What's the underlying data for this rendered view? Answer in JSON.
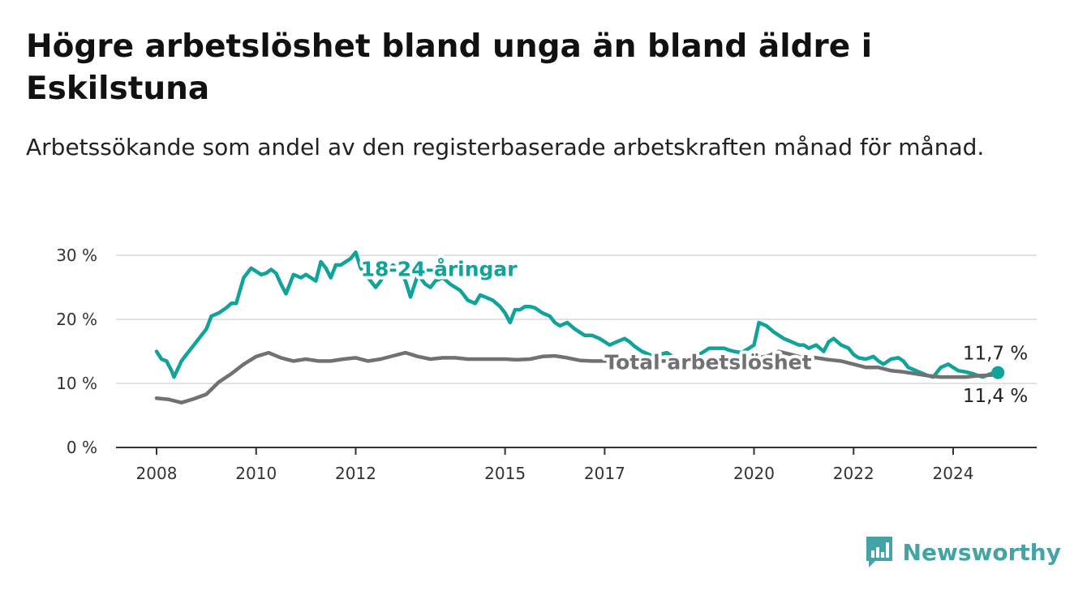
{
  "title": "Högre arbetslöshet bland unga än bland äldre i Eskilstuna",
  "subtitle": "Arbetssökande som andel av den registerbaserade arbetskraften månad för månad.",
  "brand": {
    "name": "Newsworthy",
    "color": "#43a3a5",
    "icon": "bar-chart-icon"
  },
  "colors": {
    "youth": "#10a39a",
    "total": "#737075",
    "grid": "#d9d9d9",
    "axis": "#333333"
  },
  "chart_data": {
    "type": "line",
    "x_unit": "year",
    "xlim": [
      2007.6,
      2025.8
    ],
    "ylim": [
      0,
      30
    ],
    "yticks": [
      0,
      10,
      20,
      30
    ],
    "ytick_labels": [
      "0 %",
      "10 %",
      "20 %",
      "30 %"
    ],
    "xticks": [
      2008,
      2010,
      2012,
      2015,
      2017,
      2020,
      2022,
      2024
    ],
    "xtick_labels": [
      "2008",
      "2010",
      "2012",
      "2015",
      "2017",
      "2020",
      "2022",
      "2024"
    ],
    "grid": true,
    "series": [
      {
        "key": "youth",
        "name": "18-24-åringar",
        "color": "#10a39a",
        "x": [
          2008.0,
          2008.1,
          2008.2,
          2008.3,
          2008.35,
          2008.5,
          2008.6,
          2008.75,
          2008.9,
          2009.0,
          2009.1,
          2009.25,
          2009.4,
          2009.5,
          2009.6,
          2009.75,
          2009.9,
          2010.0,
          2010.1,
          2010.2,
          2010.3,
          2010.4,
          2010.5,
          2010.6,
          2010.75,
          2010.9,
          2011.0,
          2011.1,
          2011.2,
          2011.3,
          2011.4,
          2011.5,
          2011.6,
          2011.7,
          2011.8,
          2011.9,
          2012.0,
          2012.1,
          2012.25,
          2012.4,
          2012.5,
          2012.6,
          2012.75,
          2012.9,
          2013.0,
          2013.1,
          2013.25,
          2013.4,
          2013.5,
          2013.6,
          2013.75,
          2013.9,
          2014.0,
          2014.1,
          2014.25,
          2014.4,
          2014.5,
          2014.6,
          2014.75,
          2014.9,
          2015.0,
          2015.1,
          2015.2,
          2015.3,
          2015.4,
          2015.5,
          2015.6,
          2015.75,
          2015.9,
          2016.0,
          2016.1,
          2016.25,
          2016.4,
          2016.5,
          2016.6,
          2016.75,
          2016.9,
          2017.0,
          2017.1,
          2017.25,
          2017.4,
          2017.5,
          2017.6,
          2017.75,
          2017.9,
          2018.0,
          2018.1,
          2018.25,
          2018.4,
          2018.5,
          2018.6,
          2018.75,
          2018.9,
          2019.0,
          2019.1,
          2019.25,
          2019.4,
          2019.5,
          2019.6,
          2019.75,
          2019.9,
          2020.0,
          2020.1,
          2020.25,
          2020.4,
          2020.5,
          2020.6,
          2020.75,
          2020.9,
          2021.0,
          2021.1,
          2021.25,
          2021.4,
          2021.5,
          2021.6,
          2021.75,
          2021.9,
          2022.0,
          2022.1,
          2022.25,
          2022.4,
          2022.5,
          2022.6,
          2022.75,
          2022.9,
          2023.0,
          2023.1,
          2023.25,
          2023.4,
          2023.5,
          2023.6,
          2023.75,
          2023.9,
          2024.0,
          2024.1,
          2024.25,
          2024.4,
          2024.5,
          2024.6,
          2024.75,
          2024.9
        ],
        "y": [
          15.0,
          13.8,
          13.5,
          12.0,
          11.0,
          13.5,
          14.5,
          16.0,
          17.5,
          18.5,
          20.5,
          21.0,
          21.8,
          22.5,
          22.5,
          26.5,
          28.0,
          27.5,
          27.0,
          27.2,
          27.8,
          27.2,
          25.5,
          24.0,
          27.0,
          26.5,
          27.0,
          26.5,
          26.0,
          29.0,
          28.0,
          26.5,
          28.5,
          28.5,
          29.0,
          29.5,
          30.5,
          28.0,
          26.5,
          25.0,
          26.0,
          27.5,
          28.5,
          27.5,
          26.0,
          23.5,
          27.0,
          25.5,
          25.0,
          26.0,
          26.5,
          25.5,
          25.0,
          24.5,
          23.0,
          22.5,
          23.8,
          23.5,
          23.0,
          22.0,
          21.0,
          19.5,
          21.5,
          21.5,
          22.0,
          22.0,
          21.8,
          21.0,
          20.5,
          19.5,
          19.0,
          19.5,
          18.5,
          18.0,
          17.5,
          17.5,
          17.0,
          16.5,
          16.0,
          16.5,
          17.0,
          16.5,
          15.8,
          15.0,
          14.5,
          14.0,
          14.5,
          14.8,
          14.0,
          13.5,
          13.5,
          14.0,
          14.5,
          15.0,
          15.5,
          15.5,
          15.5,
          15.2,
          15.0,
          14.8,
          15.5,
          16.0,
          19.5,
          19.0,
          18.0,
          17.5,
          17.0,
          16.5,
          16.0,
          16.0,
          15.5,
          16.0,
          15.0,
          16.5,
          17.0,
          16.0,
          15.5,
          14.5,
          14.0,
          13.8,
          14.2,
          13.5,
          13.0,
          13.8,
          14.0,
          13.5,
          12.5,
          12.0,
          11.5,
          11.2,
          11.0,
          12.5,
          13.0,
          12.5,
          12.0,
          11.8,
          11.5,
          11.2,
          11.0,
          11.5,
          11.7
        ]
      },
      {
        "key": "total",
        "name": "Total arbetslöshet",
        "color": "#737075",
        "x": [
          2008.0,
          2008.25,
          2008.5,
          2008.75,
          2009.0,
          2009.25,
          2009.5,
          2009.75,
          2010.0,
          2010.25,
          2010.5,
          2010.75,
          2011.0,
          2011.25,
          2011.5,
          2011.75,
          2012.0,
          2012.25,
          2012.5,
          2012.75,
          2013.0,
          2013.25,
          2013.5,
          2013.75,
          2014.0,
          2014.25,
          2014.5,
          2014.75,
          2015.0,
          2015.25,
          2015.5,
          2015.75,
          2016.0,
          2016.25,
          2016.5,
          2016.75,
          2017.0,
          2017.25,
          2017.5,
          2017.75,
          2018.0,
          2018.25,
          2018.5,
          2018.75,
          2019.0,
          2019.25,
          2019.5,
          2019.75,
          2020.0,
          2020.25,
          2020.5,
          2020.75,
          2021.0,
          2021.25,
          2021.5,
          2021.75,
          2022.0,
          2022.25,
          2022.5,
          2022.75,
          2023.0,
          2023.25,
          2023.5,
          2023.75,
          2024.0,
          2024.25,
          2024.5,
          2024.75,
          2024.9
        ],
        "y": [
          7.7,
          7.5,
          7.0,
          7.6,
          8.3,
          10.2,
          11.5,
          13.0,
          14.2,
          14.8,
          14.0,
          13.5,
          13.8,
          13.5,
          13.5,
          13.8,
          14.0,
          13.5,
          13.8,
          14.3,
          14.8,
          14.2,
          13.8,
          14.0,
          14.0,
          13.8,
          13.8,
          13.8,
          13.8,
          13.7,
          13.8,
          14.2,
          14.3,
          14.0,
          13.6,
          13.5,
          13.5,
          13.4,
          13.5,
          13.5,
          13.5,
          13.5,
          13.5,
          13.5,
          13.5,
          13.8,
          14.0,
          14.0,
          14.0,
          14.2,
          15.0,
          14.5,
          14.0,
          14.0,
          13.7,
          13.5,
          13.0,
          12.5,
          12.5,
          12.0,
          11.8,
          11.5,
          11.2,
          11.0,
          11.0,
          11.0,
          11.2,
          11.3,
          11.4
        ]
      }
    ],
    "series_label_positions": {
      "youth": {
        "x": 2012.1,
        "y": 26.8
      },
      "total": {
        "x": 2017.0,
        "y": 12.2
      }
    },
    "end_labels": [
      {
        "text": "11,7 %",
        "value": 11.7
      },
      {
        "text": "11,4 %",
        "value": 11.4
      }
    ]
  }
}
